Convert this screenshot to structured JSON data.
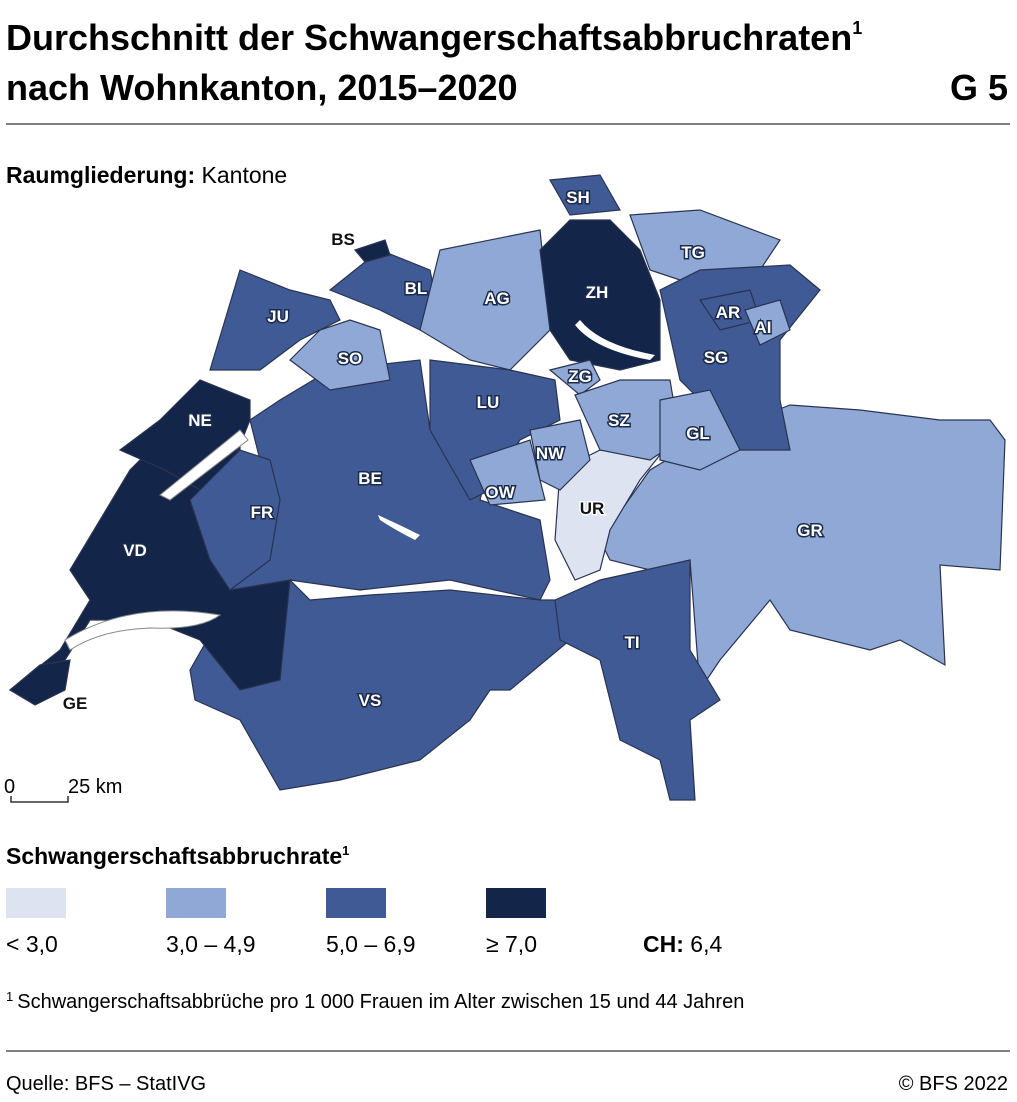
{
  "header": {
    "title_line1": "Durchschnitt der Schwangerschaftsabbruchraten",
    "title_sup": "1",
    "title_line2": "nach Wohnkanton, 2015–2020",
    "figure_id": "G 5"
  },
  "subtitle": {
    "label": "Raumgliederung:",
    "value": "Kantone"
  },
  "cantons": [
    {
      "label": "GR",
      "color": "#8fa8d6"
    },
    {
      "label": "VS",
      "color": "#3f5a94"
    },
    {
      "label": "BE",
      "color": "#3f5a94"
    },
    {
      "label": "VD",
      "color": "#13264a"
    },
    {
      "label": "TI",
      "color": "#3f5a94"
    },
    {
      "label": "UR",
      "color": "#dde3f0"
    },
    {
      "label": "GE",
      "color": "#13264a"
    },
    {
      "label": "NE",
      "color": "#13264a"
    },
    {
      "label": "FR",
      "color": "#3f5a94"
    },
    {
      "label": "JU",
      "color": "#3f5a94"
    },
    {
      "label": "SO",
      "color": "#8fa8d6"
    },
    {
      "label": "BL",
      "color": "#3f5a94"
    },
    {
      "label": "BS",
      "color": "#13264a"
    },
    {
      "label": "AG",
      "color": "#8fa8d6"
    },
    {
      "label": "ZH",
      "color": "#13264a"
    },
    {
      "label": "SH",
      "color": "#3f5a94"
    },
    {
      "label": "TG",
      "color": "#8fa8d6"
    },
    {
      "label": "SG",
      "color": "#3f5a94"
    },
    {
      "label": "AR",
      "color": "#3f5a94"
    },
    {
      "label": "AI",
      "color": "#8fa8d6"
    },
    {
      "label": "ZG",
      "color": "#8fa8d6"
    },
    {
      "label": "LU",
      "color": "#3f5a94"
    },
    {
      "label": "SZ",
      "color": "#8fa8d6"
    },
    {
      "label": "GL",
      "color": "#8fa8d6"
    },
    {
      "label": "NW",
      "color": "#8fa8d6"
    },
    {
      "label": "OW",
      "color": "#8fa8d6"
    }
  ],
  "scale_bar": {
    "start": "0",
    "end": "25 km"
  },
  "legend": {
    "title": "Schwangerschaftsabbruchrate",
    "title_sup": "1",
    "classes": [
      {
        "label": "< 3,0",
        "color": "#dde3f0"
      },
      {
        "label": "3,0 – 4,9",
        "color": "#8fa8d6"
      },
      {
        "label": "5,0 – 6,9",
        "color": "#3f5a94"
      },
      {
        "label": "≥ 7,0",
        "color": "#13264a"
      }
    ],
    "national_label": "CH:",
    "national_value": "6,4"
  },
  "footnote": {
    "sup": "1",
    "text": "Schwangerschaftsabbrüche pro 1 000 Frauen im Alter zwischen 15 und 44 Jahren"
  },
  "footer": {
    "source": "Quelle: BFS – StatIVG",
    "copyright": "© BFS 2022"
  }
}
